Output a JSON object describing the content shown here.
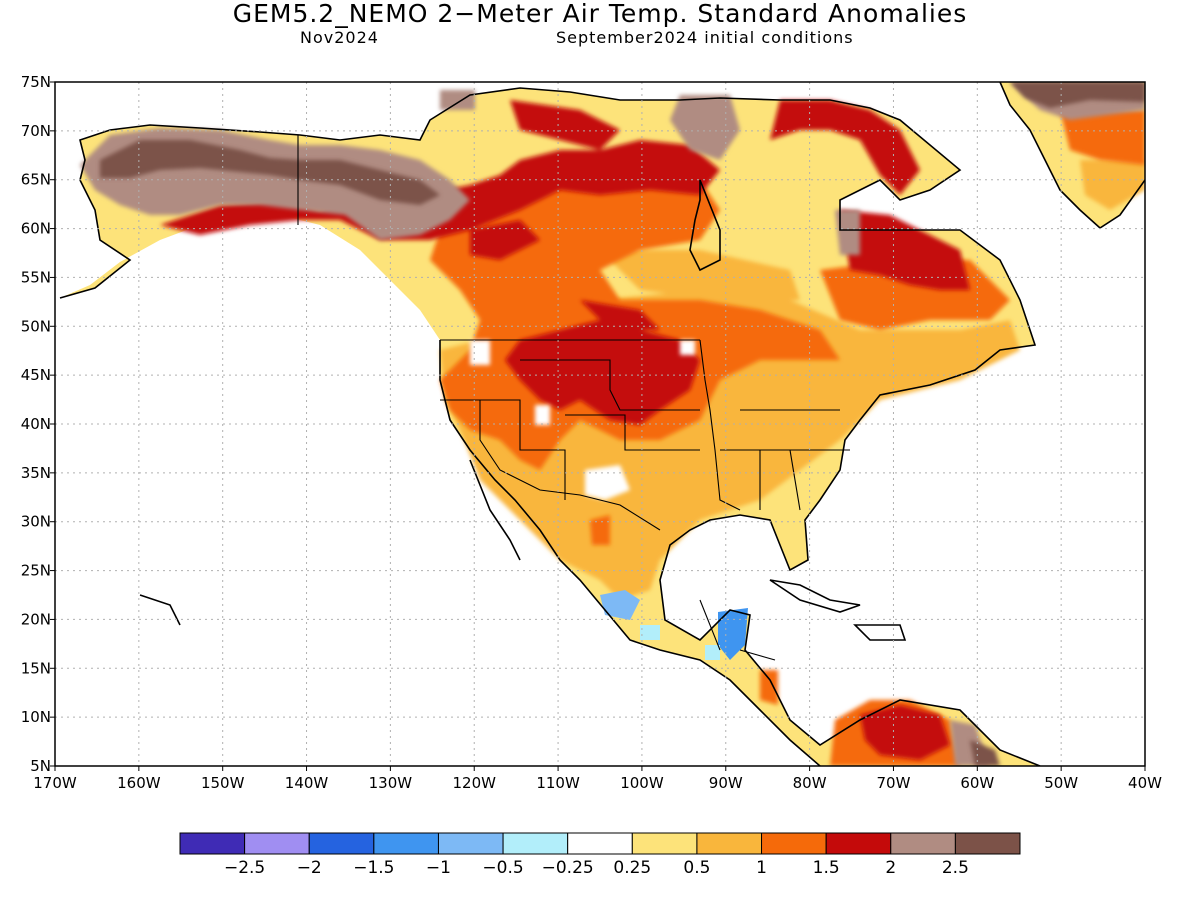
{
  "title": "GEM5.2_NEMO 2−Meter Air Temp. Standard Anomalies",
  "valid_month": "Nov2024",
  "init_conditions": "September2024 initial conditions",
  "lat_ticks": [
    "75N",
    "70N",
    "65N",
    "60N",
    "55N",
    "50N",
    "45N",
    "40N",
    "35N",
    "30N",
    "25N",
    "20N",
    "15N",
    "10N",
    "5N"
  ],
  "lon_ticks": [
    "170W",
    "160W",
    "150W",
    "140W",
    "130W",
    "120W",
    "110W",
    "100W",
    "90W",
    "80W",
    "70W",
    "60W",
    "50W",
    "40W"
  ],
  "colorbar": {
    "colors": [
      "#3f2bb5",
      "#a08ef2",
      "#2563e0",
      "#3f95f0",
      "#7db9f5",
      "#b2eefa",
      "#ffffff",
      "#fde37a",
      "#f9b63c",
      "#f56a0a",
      "#c40a0a",
      "#b08c82",
      "#7c5248"
    ],
    "labels": [
      "−2.5",
      "−2",
      "−1.5",
      "−1",
      "−0.5",
      "−0.25",
      "0.25",
      "0.5",
      "1",
      "1.5",
      "2",
      "2.5"
    ]
  },
  "map_colors": {
    "coast": "#000000",
    "grid": "#b0b0b0"
  }
}
